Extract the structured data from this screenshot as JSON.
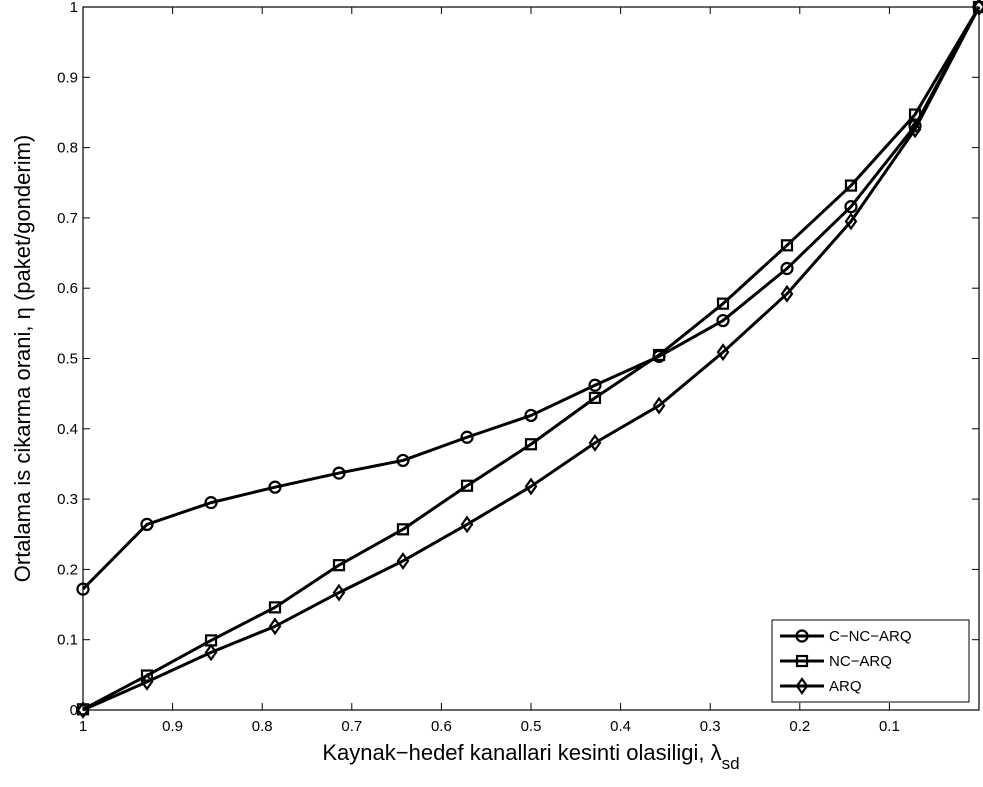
{
  "chart_data": {
    "type": "line",
    "xlabel": "Kaynak−hedef kanallari kesinti olasiligi, λ",
    "xlabel_subscript": "sd",
    "ylabel": "Ortalama is cikarma orani, η (paket/gonderim)",
    "x_reversed": true,
    "xlim": [
      1,
      0
    ],
    "ylim": [
      0,
      1
    ],
    "x_ticks": [
      1,
      0.9,
      0.8,
      0.7,
      0.6,
      0.5,
      0.4,
      0.3,
      0.2,
      0.1
    ],
    "x_tick_labels": [
      "1",
      "0.9",
      "0.8",
      "0.7",
      "0.6",
      "0.5",
      "0.4",
      "0.3",
      "0.2",
      "0.1"
    ],
    "y_ticks": [
      0,
      0.1,
      0.2,
      0.3,
      0.4,
      0.5,
      0.6,
      0.7,
      0.8,
      0.9,
      1
    ],
    "y_tick_labels": [
      "0",
      "0.1",
      "0.2",
      "0.3",
      "0.4",
      "0.5",
      "0.6",
      "0.7",
      "0.8",
      "0.9",
      "1"
    ],
    "grid": false,
    "legend_position": "bottom-right",
    "x": [
      1.0,
      0.9286,
      0.8571,
      0.7857,
      0.7143,
      0.6429,
      0.5714,
      0.5,
      0.4286,
      0.3571,
      0.2857,
      0.2143,
      0.1429,
      0.0714,
      0.0
    ],
    "series": [
      {
        "name": "C−NC−ARQ",
        "marker": "circle",
        "color": "#000000",
        "values": [
          0.172,
          0.264,
          0.295,
          0.317,
          0.337,
          0.355,
          0.388,
          0.419,
          0.462,
          0.503,
          0.554,
          0.628,
          0.716,
          0.831,
          1.0
        ]
      },
      {
        "name": "NC−ARQ",
        "marker": "square",
        "color": "#000000",
        "values": [
          0.001,
          0.049,
          0.099,
          0.146,
          0.206,
          0.257,
          0.319,
          0.378,
          0.444,
          0.505,
          0.578,
          0.661,
          0.746,
          0.847,
          1.0
        ]
      },
      {
        "name": "ARQ",
        "marker": "diamond",
        "color": "#000000",
        "values": [
          0.0,
          0.04,
          0.082,
          0.119,
          0.167,
          0.212,
          0.264,
          0.318,
          0.38,
          0.433,
          0.509,
          0.592,
          0.695,
          0.826,
          1.0
        ]
      }
    ]
  }
}
